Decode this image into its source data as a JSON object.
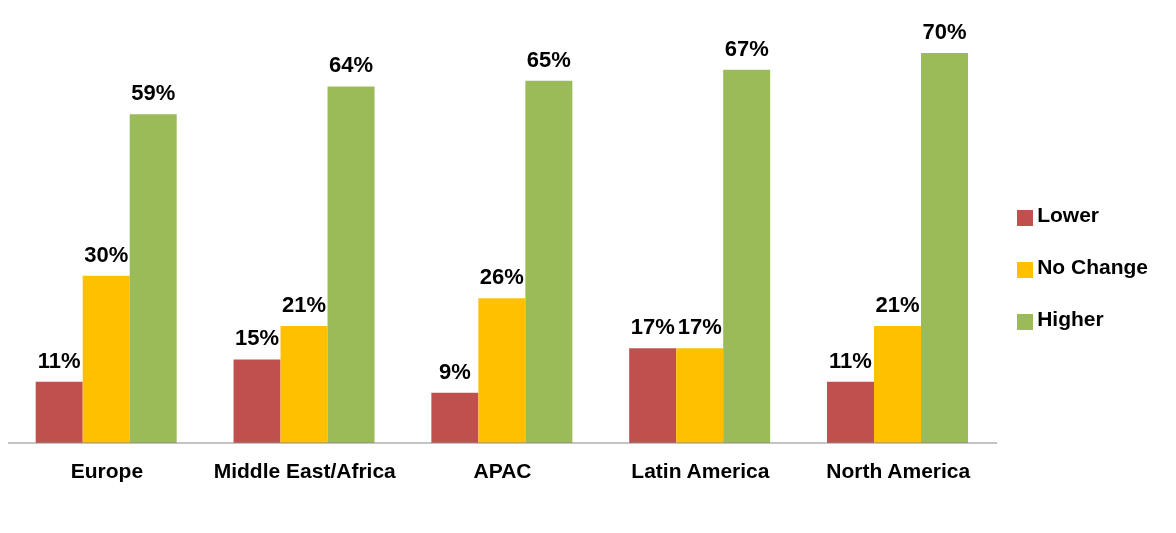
{
  "chart_data": {
    "type": "bar",
    "categories": [
      "Europe",
      "Middle East/Africa",
      "APAC",
      "Latin America",
      "North America"
    ],
    "series": [
      {
        "name": "Lower",
        "color": "#c0504d",
        "values": [
          11,
          15,
          9,
          17,
          11
        ],
        "value_labels": [
          "11%",
          "15%",
          "9%",
          "17%",
          "11%"
        ]
      },
      {
        "name": "No Change",
        "color": "#ffc000",
        "values": [
          30,
          21,
          26,
          17,
          21
        ],
        "value_labels": [
          "30%",
          "21%",
          "26%",
          "17%",
          "21%"
        ]
      },
      {
        "name": "Higher",
        "color": "#9bbb59",
        "values": [
          59,
          64,
          65,
          67,
          70
        ],
        "value_labels": [
          "59%",
          "64%",
          "65%",
          "67%",
          "70%"
        ]
      }
    ],
    "legend": "right",
    "grid": false
  }
}
